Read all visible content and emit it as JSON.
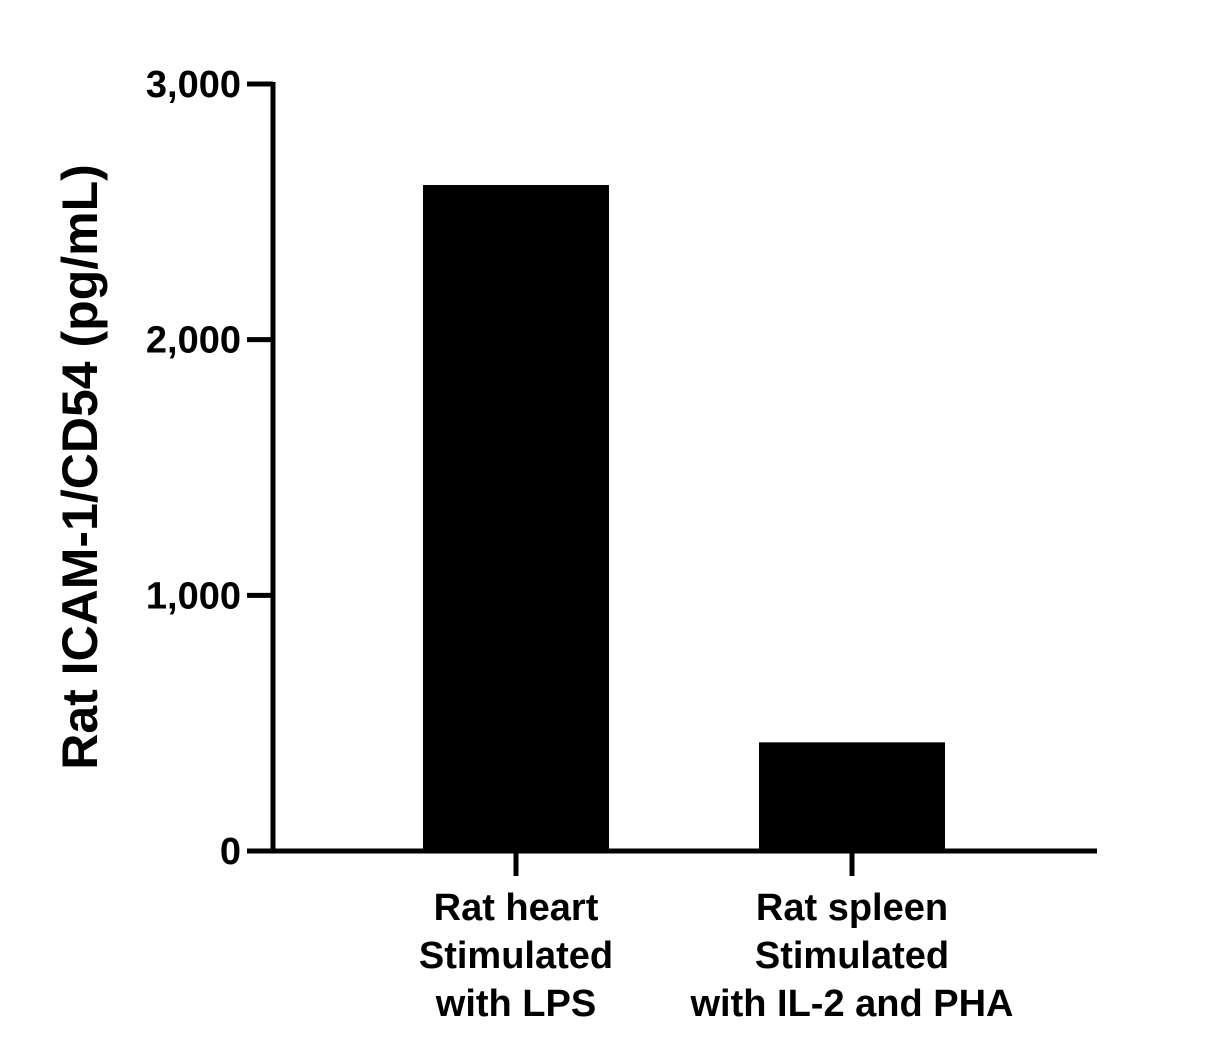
{
  "chart_data": {
    "type": "bar",
    "title": "",
    "xlabel": "",
    "ylabel": "Rat ICAM-1/CD54 (pg/mL)",
    "ylim": [
      0,
      3000
    ],
    "yticks": [
      0,
      1000,
      2000,
      3000
    ],
    "ytick_labels": [
      "0",
      "1,000",
      "2,000",
      "3,000"
    ],
    "grid": false,
    "bar_color": "#000000",
    "categories": [
      [
        "Rat heart",
        "Stimulated",
        "with LPS"
      ],
      [
        "Rat spleen",
        "Stimulated",
        "with IL-2 and PHA"
      ]
    ],
    "values": [
      2605,
      425
    ]
  }
}
